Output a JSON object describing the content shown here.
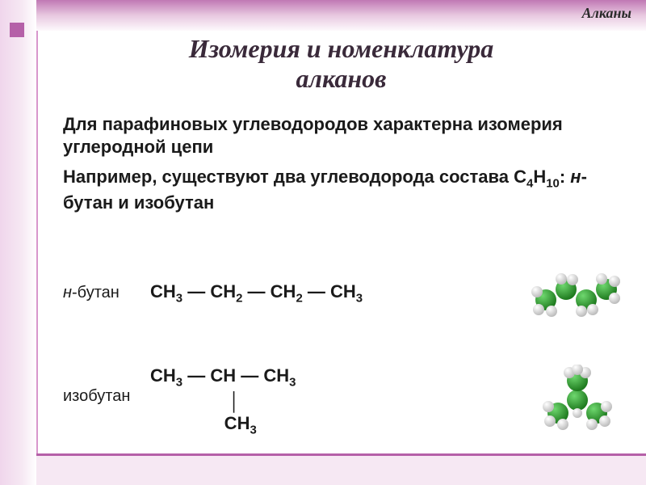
{
  "tag": "Алканы",
  "title_line1": "Изомерия и номенклатура",
  "title_line2": "алканов",
  "para1": "Для парафиновых углеводородов характерна изомерия углеродной цепи",
  "para2_a": "Например, существуют два углеводорода состава C",
  "para2_sub1": "4",
  "para2_b": "H",
  "para2_sub2": "10",
  "para2_c": ": ",
  "para2_i": "н",
  "para2_d": "-бутан и изобутан",
  "isomers": [
    {
      "label_i": "н",
      "label_rest": "-бутан",
      "formula_html": "CH<sub>3</sub> — CH<sub>2</sub> — CH<sub>2</sub> — CH<sub>3</sub>"
    },
    {
      "label_i": "",
      "label_rest": "изобутан",
      "formula_html": "CH<sub>3</sub> — CH — CH<sub>3</sub><br>&nbsp;&nbsp;&nbsp;&nbsp;&nbsp;&nbsp;&nbsp;&nbsp;&nbsp;&nbsp;&nbsp;&nbsp;&nbsp;&nbsp;&nbsp;&nbsp;│<br>&nbsp;&nbsp;&nbsp;&nbsp;&nbsp;&nbsp;&nbsp;&nbsp;&nbsp;&nbsp;&nbsp;&nbsp;&nbsp;&nbsp;&nbsp;CH<sub>3</sub>"
    }
  ],
  "colors": {
    "carbon": "#2fa52f",
    "carbon_hl": "#6fd86f",
    "hydrogen": "#e8e8e8",
    "hydrogen_hl": "#ffffff",
    "accent": "#b560a8"
  }
}
